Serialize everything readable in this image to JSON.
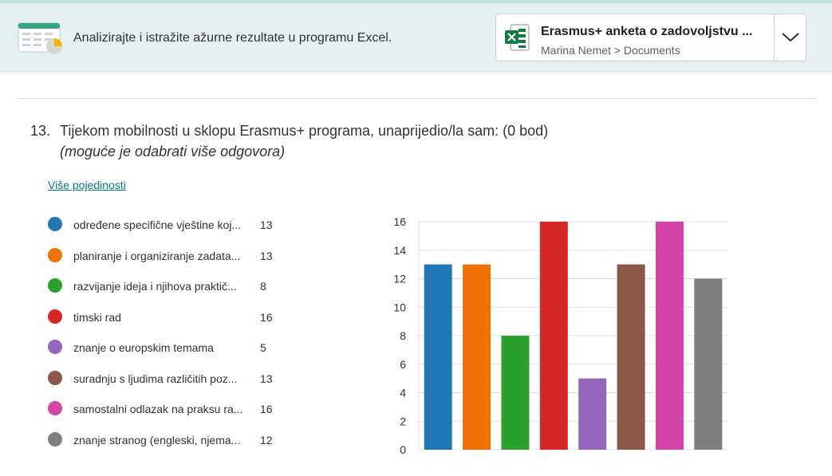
{
  "banner": {
    "text": "Analizirajte i istražite ažurne rezultate u programu Excel.",
    "file_title": "Erasmus+ anketa o zadovoljstvu ...",
    "file_path": "Marina Nemet > Documents",
    "icon": "excel-icon",
    "colors": {
      "banner_bg": "#e6f0f1",
      "excel_green": "#107c41"
    }
  },
  "question": {
    "number": "13.",
    "title": "Tijekom mobilnosti u sklopu Erasmus+ programa, unaprijedio/la sam: (0 bod)",
    "subtitle": "(moguće je odabrati više odgovora)",
    "more_details": "Više pojedinosti"
  },
  "legend": [
    {
      "label": "određene specifične vještine koj...",
      "count": "13",
      "color": "#2177b4"
    },
    {
      "label": "planiranje i organiziranje zadata...",
      "count": "13",
      "color": "#ee7103"
    },
    {
      "label": "razvijanje ideja i njihova praktič...",
      "count": "8",
      "color": "#2ca02c"
    },
    {
      "label": "timski rad",
      "count": "16",
      "color": "#d62728"
    },
    {
      "label": "znanje o europskim temama",
      "count": "5",
      "color": "#9467bd"
    },
    {
      "label": "suradnju s ljudima različitih poz...",
      "count": "13",
      "color": "#8c564b"
    },
    {
      "label": "samostalni odlazak na praksu ra...",
      "count": "16",
      "color": "#d545a9"
    },
    {
      "label": "znanje stranog (engleski, njema...",
      "count": "12",
      "color": "#7f7f7f"
    }
  ],
  "chart_data": {
    "type": "bar",
    "categories": [
      "određene specifične vještine koj...",
      "planiranje i organiziranje zadata...",
      "razvijanje ideja i njihova praktič...",
      "timski rad",
      "znanje o europskim temama",
      "suradnju s ljudima različitih poz...",
      "samostalni odlazak na praksu ra...",
      "znanje stranog (engleski, njema..."
    ],
    "values": [
      13,
      13,
      8,
      16,
      5,
      13,
      16,
      12
    ],
    "colors": [
      "#2177b4",
      "#ee7103",
      "#2ca02c",
      "#d62728",
      "#9467bd",
      "#8c564b",
      "#d545a9",
      "#7f7f7f"
    ],
    "ylim": [
      0,
      16
    ],
    "yticks": [
      0,
      2,
      4,
      6,
      8,
      10,
      12,
      14,
      16
    ],
    "grid": true,
    "legend_placement": "left"
  }
}
